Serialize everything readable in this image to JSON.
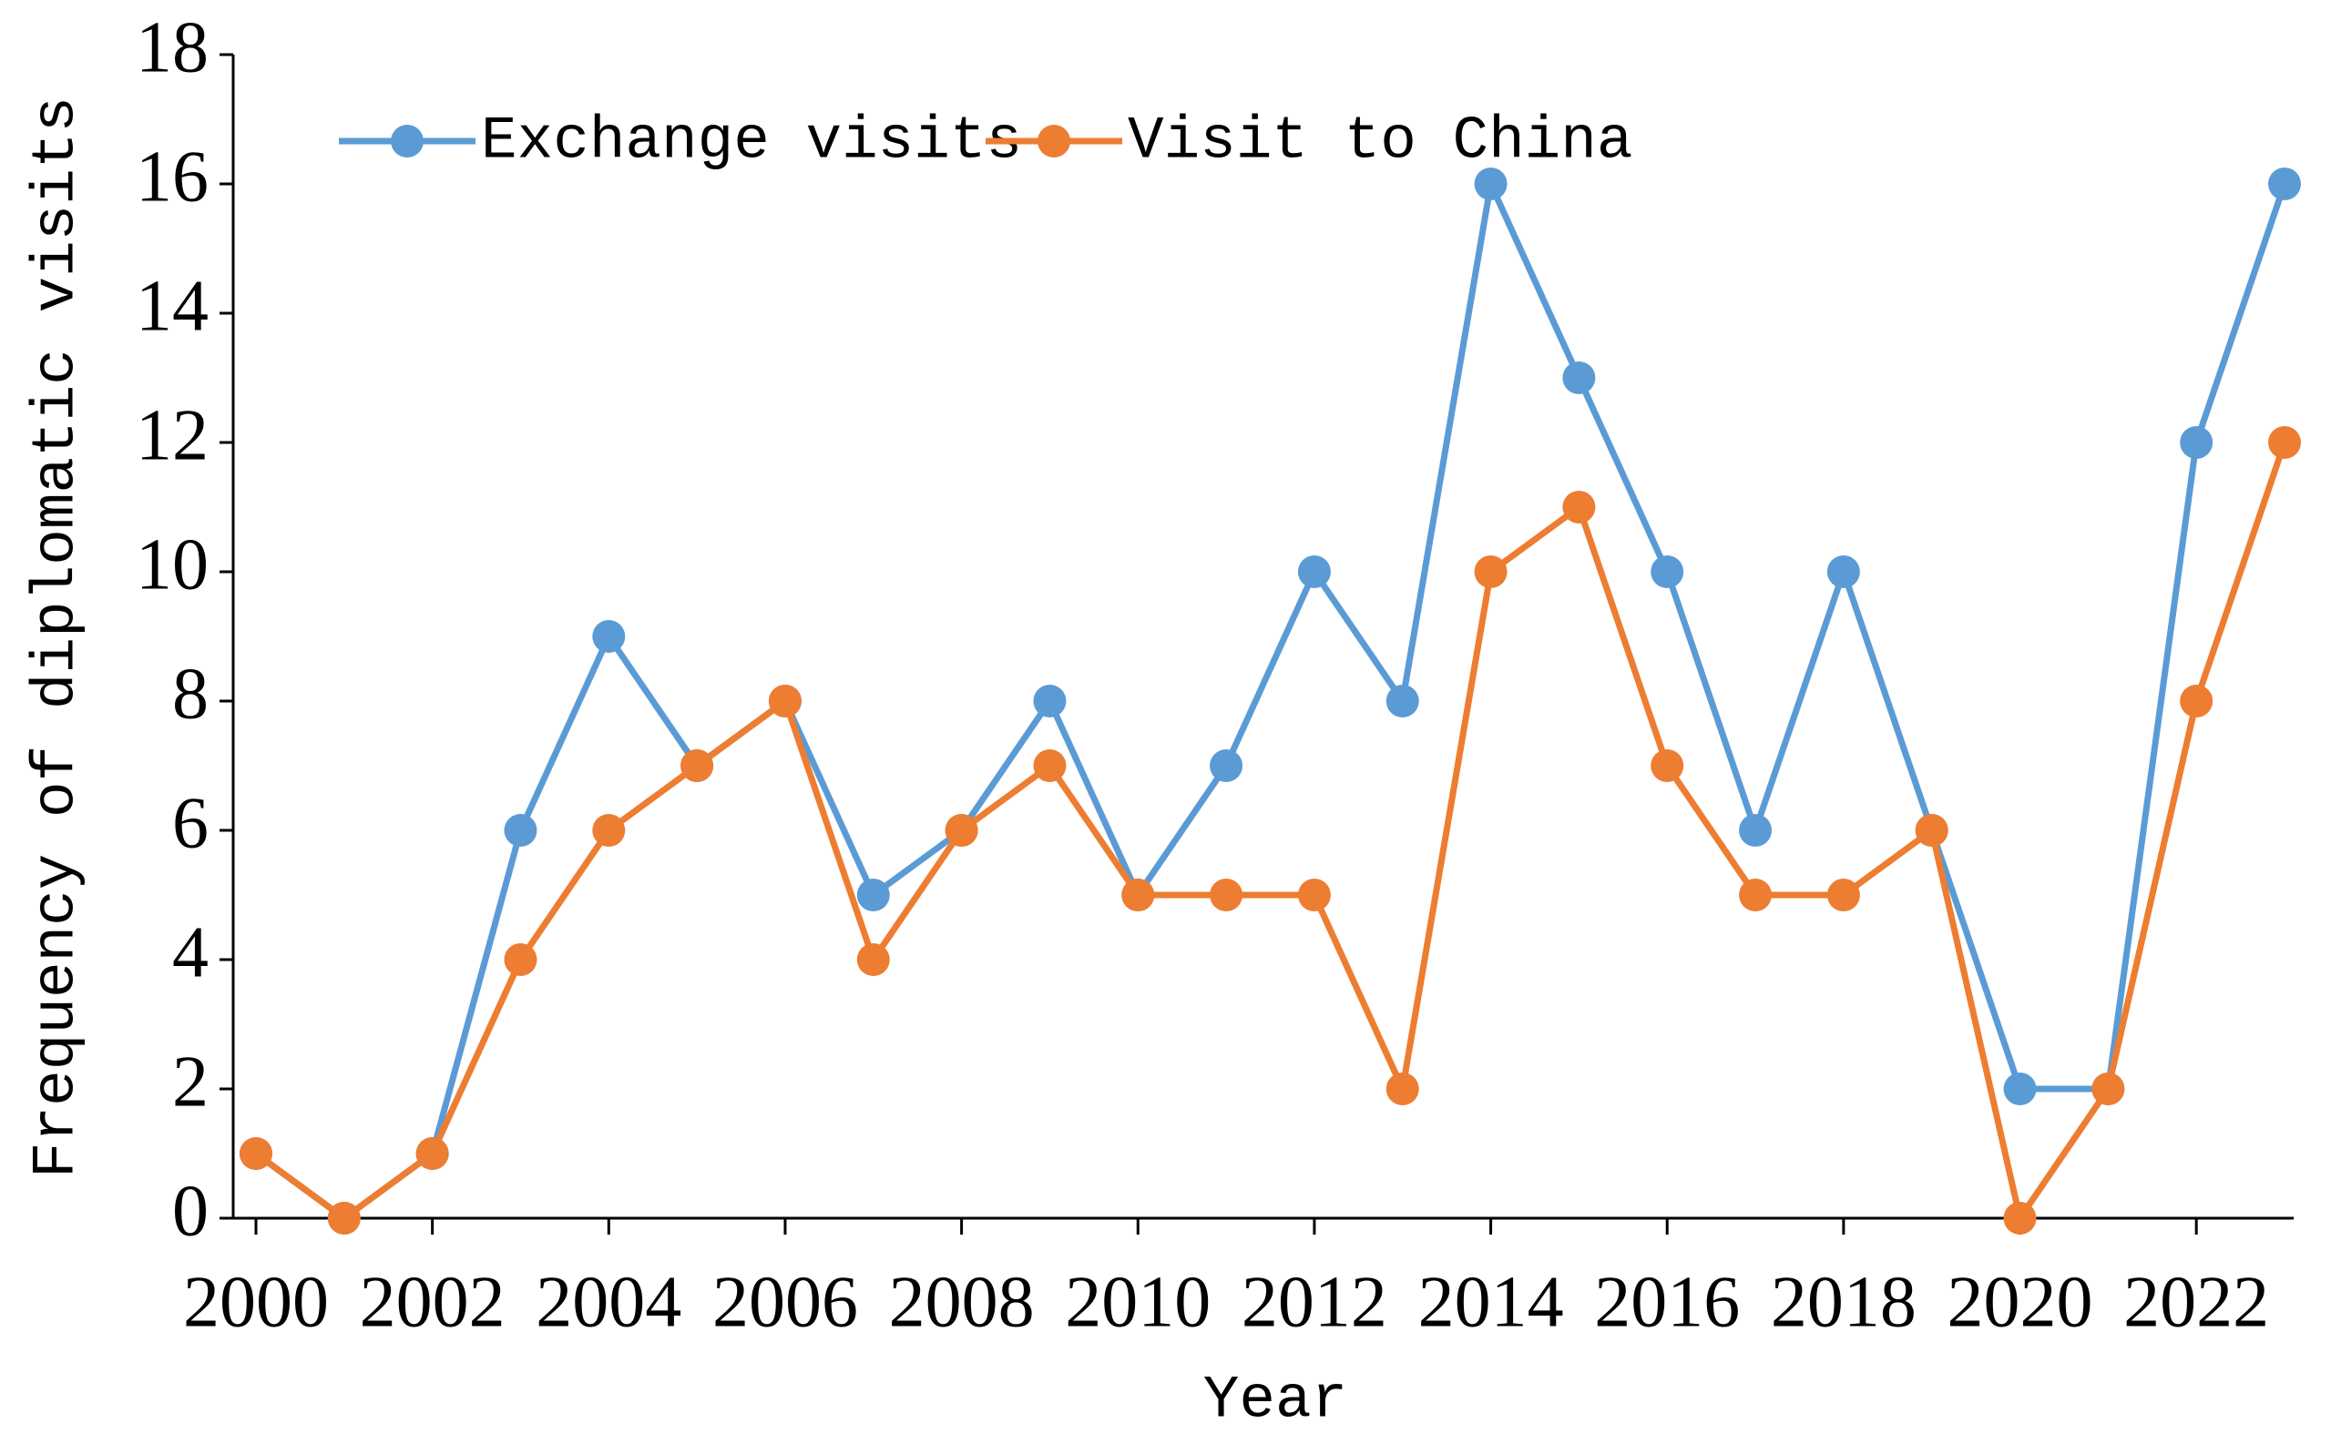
{
  "chart_data": {
    "type": "line",
    "x_label": "Year",
    "y_label": "Frequency of diplomatic visits",
    "x": [
      2000,
      2001,
      2002,
      2003,
      2004,
      2005,
      2006,
      2007,
      2008,
      2009,
      2010,
      2011,
      2012,
      2013,
      2014,
      2015,
      2016,
      2017,
      2018,
      2019,
      2020,
      2021,
      2022,
      2023
    ],
    "series": [
      {
        "name": "Exchange visits",
        "color": "#5b9bd5",
        "values": [
          1,
          0,
          1,
          6,
          9,
          7,
          8,
          5,
          6,
          8,
          5,
          7,
          10,
          8,
          16,
          13,
          10,
          6,
          10,
          6,
          2,
          2,
          12,
          16
        ]
      },
      {
        "name": "Visit to China",
        "color": "#ed7d31",
        "values": [
          1,
          0,
          1,
          4,
          6,
          7,
          8,
          4,
          6,
          7,
          5,
          5,
          5,
          2,
          10,
          11,
          7,
          5,
          5,
          6,
          0,
          2,
          8,
          12
        ]
      }
    ],
    "xlim": [
      2000,
      2023
    ],
    "xticks": [
      2000,
      2002,
      2004,
      2006,
      2008,
      2010,
      2012,
      2014,
      2016,
      2018,
      2020,
      2022
    ],
    "ylim": [
      0,
      18
    ],
    "yticks": [
      0,
      2,
      4,
      6,
      8,
      10,
      12,
      14,
      16,
      18
    ],
    "grid": false,
    "legend": "top-left"
  }
}
